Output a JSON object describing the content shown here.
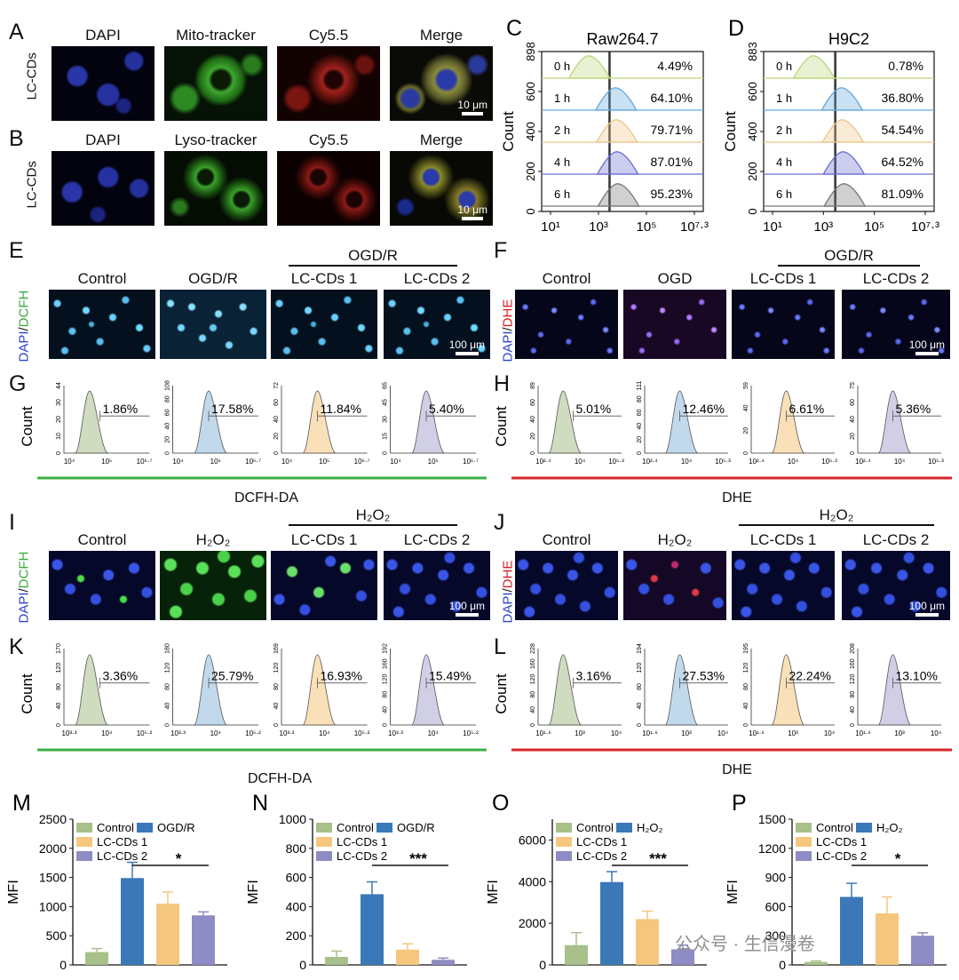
{
  "panels": {
    "A": {
      "letter": "A",
      "row_label": "LC-CDs",
      "columns": [
        "DAPI",
        "Mito-tracker",
        "Cy5.5",
        "Merge"
      ],
      "scale_bar": "10 μm"
    },
    "B": {
      "letter": "B",
      "row_label": "LC-CDs",
      "columns": [
        "DAPI",
        "Lyso-tracker",
        "Cy5.5",
        "Merge"
      ],
      "scale_bar": "10 μm"
    },
    "E": {
      "letter": "E",
      "ylabel_a": "DAPI",
      "ylabel_b": "DCFH",
      "group": "OGD/R",
      "columns": [
        "Control",
        "OGD/R",
        "LC-CDs 1",
        "LC-CDs 2"
      ],
      "scale_bar": "100 μm"
    },
    "F": {
      "letter": "F",
      "ylabel_a": "DAPI",
      "ylabel_b": "DHE",
      "group": "OGD/R",
      "columns": [
        "Control",
        "OGD",
        "LC-CDs 1",
        "LC-CDs 2"
      ],
      "scale_bar": "100 μm"
    },
    "I": {
      "letter": "I",
      "ylabel_a": "DAPI",
      "ylabel_b": "DCFH",
      "group": "H₂O₂",
      "columns": [
        "Control",
        "H₂O₂",
        "LC-CDs 1",
        "LC-CDs 2"
      ],
      "scale_bar": "100 μm"
    },
    "J": {
      "letter": "J",
      "ylabel_a": "DAPI",
      "ylabel_b": "DHE",
      "group": "H₂O₂",
      "columns": [
        "Control",
        "H₂O₂",
        "LC-CDs 1",
        "LC-CDs 2"
      ],
      "scale_bar": "100 μm"
    },
    "G": {
      "letter": "G",
      "xlabel": "DCFH-DA"
    },
    "H": {
      "letter": "H",
      "xlabel": "DHE"
    },
    "K": {
      "letter": "K",
      "xlabel": "DCFH-DA"
    },
    "L": {
      "letter": "L",
      "xlabel": "DHE"
    }
  },
  "colors": {
    "green_line": "#3cb043",
    "red_line": "#d9262a",
    "control": "#a8c08a",
    "ogd": "#3b78b8",
    "lc1": "#f5c77e",
    "lc2": "#8e8cc4",
    "green_text": "#3aa83a",
    "red_text": "#d42020",
    "blue_text": "#2a44c8"
  },
  "watermark": "公众号 · 生信漫卷",
  "chart_data": [
    {
      "id": "C",
      "type": "histogram-overlay",
      "title": "Raw264.7",
      "ylabel": "Count",
      "ylim": [
        0,
        898
      ],
      "yticks": [
        "0",
        "200",
        "400",
        "600",
        "898"
      ],
      "xticks": [
        "10¹",
        "10³",
        "10⁵",
        "10⁷·³"
      ],
      "rows": [
        {
          "label": "0 h",
          "percent": "4.49%",
          "color": "#bcd77a"
        },
        {
          "label": "1 h",
          "percent": "64.10%",
          "color": "#66a9dc"
        },
        {
          "label": "2 h",
          "percent": "79.71%",
          "color": "#edc58a"
        },
        {
          "label": "4 h",
          "percent": "87.01%",
          "color": "#6d6fd0"
        },
        {
          "label": "6 h",
          "percent": "95.23%",
          "color": "#777777"
        }
      ]
    },
    {
      "id": "D",
      "type": "histogram-overlay",
      "title": "H9C2",
      "ylabel": "Count",
      "ylim": [
        0,
        883
      ],
      "yticks": [
        "0",
        "200",
        "400",
        "600",
        "883"
      ],
      "xticks": [
        "10¹",
        "10³",
        "10⁵",
        "10⁷·³"
      ],
      "rows": [
        {
          "label": "0 h",
          "percent": "0.78%",
          "color": "#bcd77a"
        },
        {
          "label": "1 h",
          "percent": "36.80%",
          "color": "#66a9dc"
        },
        {
          "label": "2 h",
          "percent": "54.54%",
          "color": "#edc58a"
        },
        {
          "label": "4 h",
          "percent": "64.52%",
          "color": "#6d6fd0"
        },
        {
          "label": "6 h",
          "percent": "81.09%",
          "color": "#777777"
        }
      ]
    },
    {
      "id": "G",
      "type": "histogram",
      "ylabel": "Count",
      "xticks": [
        "10⁴",
        "10⁵",
        "10⁶·⁷"
      ],
      "plots": [
        {
          "percent": "1.86%",
          "ymax": "44",
          "yticks": [
            "0",
            "10",
            "20",
            "30",
            "44"
          ],
          "color": "#a8c08a"
        },
        {
          "percent": "17.58%",
          "ymax": "108",
          "yticks": [
            "0",
            "20",
            "40",
            "60",
            "80",
            "108"
          ],
          "color": "#8fb9dc"
        },
        {
          "percent": "11.84%",
          "ymax": "72",
          "yticks": [
            "0",
            "20",
            "40",
            "60",
            "72"
          ],
          "color": "#f5c77e"
        },
        {
          "percent": "5.40%",
          "ymax": "65",
          "yticks": [
            "0",
            "15",
            "30",
            "45",
            "65"
          ],
          "color": "#a9a8d2"
        }
      ]
    },
    {
      "id": "H",
      "type": "histogram",
      "ylabel": "Count",
      "xticks": [
        "10²·⁴",
        "10⁴",
        "10⁵·³"
      ],
      "plots": [
        {
          "percent": "5.01%",
          "ymax": "89",
          "yticks": [
            "0",
            "20",
            "40",
            "60",
            "89"
          ],
          "color": "#a8c08a"
        },
        {
          "percent": "12.46%",
          "ymax": "111",
          "yticks": [
            "0",
            "20",
            "40",
            "60",
            "80",
            "111"
          ],
          "color": "#8fb9dc"
        },
        {
          "percent": "6.61%",
          "ymax": "59",
          "yticks": [
            "0",
            "20",
            "40",
            "59"
          ],
          "color": "#f5c77e"
        },
        {
          "percent": "5.36%",
          "ymax": "75",
          "yticks": [
            "0",
            "20",
            "40",
            "60",
            "75"
          ],
          "color": "#a9a8d2"
        }
      ]
    },
    {
      "id": "K",
      "type": "histogram",
      "ylabel": "Count",
      "xticks": [
        "10³·³",
        "10⁴",
        "10⁵·²"
      ],
      "plots": [
        {
          "percent": "3.36%",
          "ymax": "170",
          "yticks": [
            "0",
            "40",
            "80",
            "120",
            "170"
          ],
          "color": "#a8c08a"
        },
        {
          "percent": "25.79%",
          "ymax": "180",
          "yticks": [
            "0",
            "40",
            "80",
            "120",
            "180"
          ],
          "color": "#8fb9dc"
        },
        {
          "percent": "16.93%",
          "ymax": "169",
          "yticks": [
            "0",
            "40",
            "80",
            "120",
            "169"
          ],
          "color": "#f5c77e"
        },
        {
          "percent": "15.49%",
          "ymax": "192",
          "yticks": [
            "0",
            "40",
            "80",
            "120",
            "160",
            "192"
          ],
          "color": "#a9a8d2"
        }
      ]
    },
    {
      "id": "L",
      "type": "histogram",
      "ylabel": "Count",
      "xticks": [
        "10¹·⁶",
        "10³",
        "10⁴"
      ],
      "plots": [
        {
          "percent": "3.16%",
          "ymax": "228",
          "yticks": [
            "0",
            "40",
            "80",
            "120",
            "160",
            "228"
          ],
          "color": "#a8c08a"
        },
        {
          "percent": "27.53%",
          "ymax": "194",
          "yticks": [
            "0",
            "40",
            "80",
            "120",
            "194"
          ],
          "color": "#8fb9dc"
        },
        {
          "percent": "22.24%",
          "ymax": "195",
          "yticks": [
            "0",
            "40",
            "80",
            "120",
            "195"
          ],
          "color": "#f5c77e"
        },
        {
          "percent": "13.10%",
          "ymax": "208",
          "yticks": [
            "0",
            "40",
            "80",
            "120",
            "160",
            "208"
          ],
          "color": "#a9a8d2"
        }
      ]
    },
    {
      "id": "M",
      "type": "bar",
      "ylabel": "MFI",
      "ylim": [
        0,
        2500
      ],
      "yticks": [
        0,
        500,
        1000,
        1500,
        2000,
        2500
      ],
      "categories": [
        "Control",
        "OGD/R",
        "LC-CDs 1",
        "LC-CDs 2"
      ],
      "values": [
        220,
        1490,
        1050,
        850
      ],
      "errors": [
        60,
        270,
        200,
        60
      ],
      "legend": [
        "Control",
        "OGD/R",
        "LC-CDs 1",
        "LC-CDs 2"
      ],
      "significance": "*"
    },
    {
      "id": "N",
      "type": "bar",
      "ylabel": "MFI",
      "ylim": [
        0,
        1000
      ],
      "yticks": [
        0,
        200,
        400,
        600,
        800,
        1000
      ],
      "categories": [
        "Control",
        "OGD/R",
        "LC-CDs 1",
        "LC-CDs 2"
      ],
      "values": [
        55,
        485,
        105,
        35
      ],
      "errors": [
        40,
        85,
        40,
        12
      ],
      "legend": [
        "Control",
        "OGD/R",
        "LC-CDs 1",
        "LC-CDs 2"
      ],
      "significance": "***"
    },
    {
      "id": "O",
      "type": "bar",
      "ylabel": "MFI",
      "ylim": [
        0,
        7000
      ],
      "yticks": [
        0,
        2000,
        4000,
        6000
      ],
      "categories": [
        "Control",
        "H₂O₂",
        "LC-CDs 1",
        "LC-CDs 2"
      ],
      "values": [
        950,
        3980,
        2200,
        750
      ],
      "errors": [
        600,
        500,
        380,
        200
      ],
      "legend": [
        "Control",
        "H₂O₂",
        "LC-CDs 1",
        "LC-CDs 2"
      ],
      "significance": "***"
    },
    {
      "id": "P",
      "type": "bar",
      "ylabel": "MFI",
      "ylim": [
        0,
        1500
      ],
      "yticks": [
        0,
        300,
        600,
        900,
        1200,
        1500
      ],
      "categories": [
        "Control",
        "H₂O₂",
        "LC-CDs 1",
        "LC-CDs 2"
      ],
      "values": [
        30,
        700,
        530,
        300
      ],
      "errors": [
        10,
        140,
        170,
        30
      ],
      "legend": [
        "Control",
        "H₂O₂",
        "LC-CDs 1",
        "LC-CDs 2"
      ],
      "significance": "*"
    }
  ]
}
